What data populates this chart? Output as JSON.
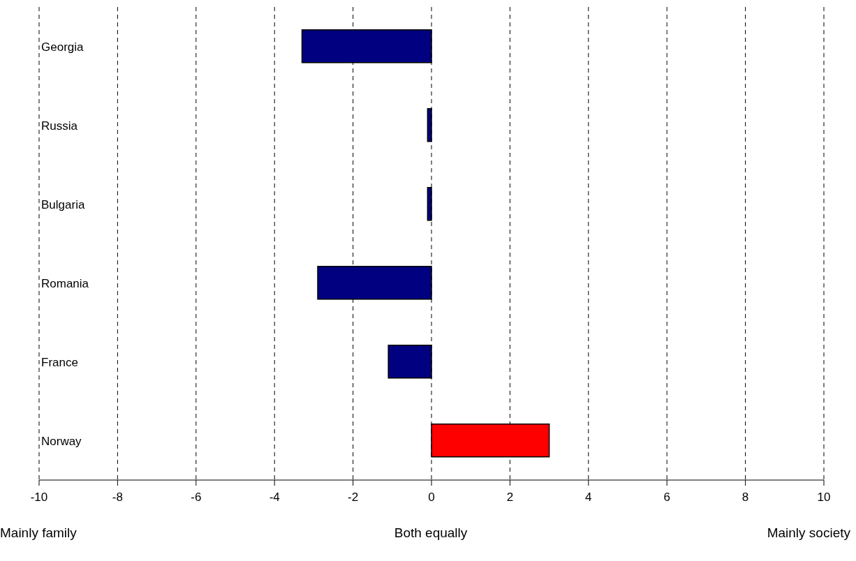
{
  "chart_data": {
    "type": "bar",
    "orientation": "horizontal",
    "categories": [
      "Georgia",
      "Russia",
      "Bulgaria",
      "Romania",
      "France",
      "Norway"
    ],
    "values": [
      -3.3,
      -0.1,
      -0.1,
      -2.9,
      -1.1,
      3.0
    ],
    "colors": [
      "#000080",
      "#000080",
      "#000080",
      "#000080",
      "#000080",
      "#ff0000"
    ],
    "xlim": [
      -10,
      10
    ],
    "xticks": [
      -10,
      -8,
      -6,
      -4,
      -2,
      0,
      2,
      4,
      6,
      8,
      10
    ],
    "grid": "x",
    "annotations": [
      "Mainly family",
      "Both equally",
      "Mainly society"
    ]
  }
}
